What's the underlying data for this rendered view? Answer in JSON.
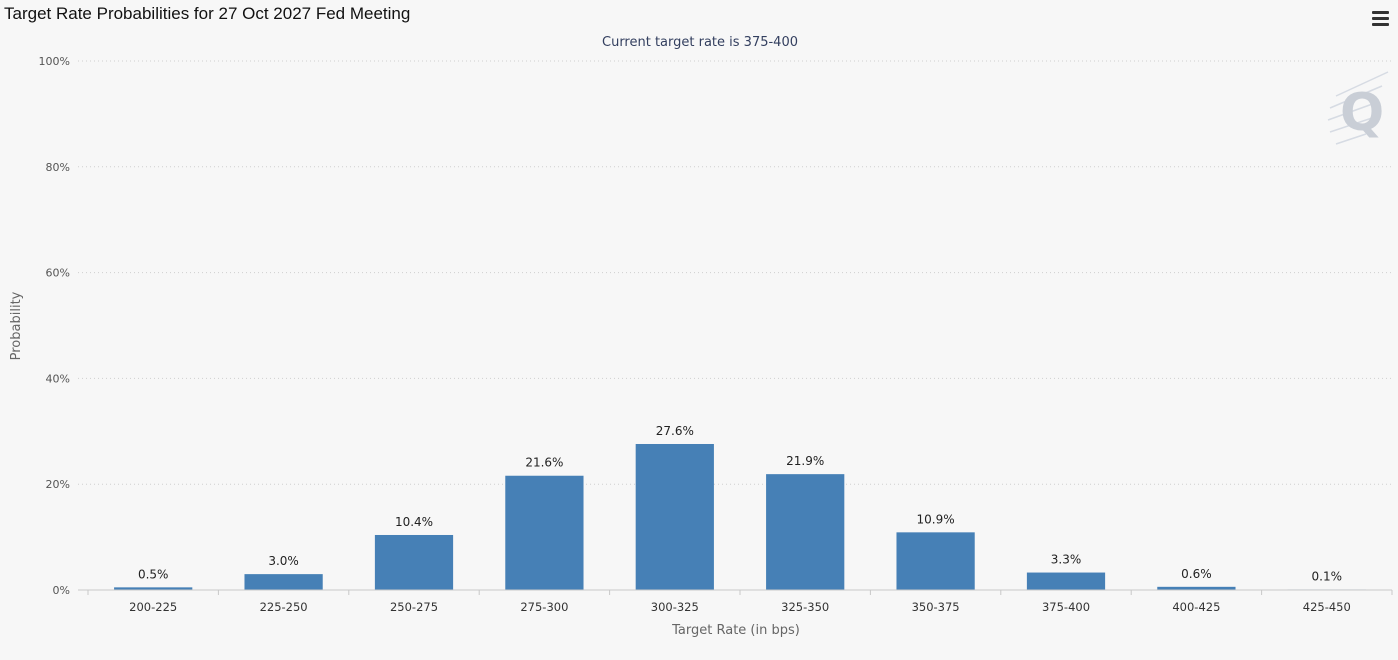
{
  "header": {
    "title": "Target Rate Probabilities for 27 Oct 2027 Fed Meeting",
    "menu_icon": "hamburger-menu-icon"
  },
  "watermark": {
    "text": "Q"
  },
  "chart_data": {
    "type": "bar",
    "subtitle": "Current target rate is 375-400",
    "xlabel": "Target Rate (in bps)",
    "ylabel": "Probability",
    "categories": [
      "200-225",
      "225-250",
      "250-275",
      "275-300",
      "300-325",
      "325-350",
      "350-375",
      "375-400",
      "400-425",
      "425-450"
    ],
    "values": [
      0.5,
      3.0,
      10.4,
      21.6,
      27.6,
      21.9,
      10.9,
      3.3,
      0.6,
      0.1
    ],
    "data_labels": [
      "0.5%",
      "3.0%",
      "10.4%",
      "21.6%",
      "27.6%",
      "21.9%",
      "10.9%",
      "3.3%",
      "0.6%",
      "0.1%"
    ],
    "ylim": [
      0,
      100
    ],
    "yticks": [
      0,
      20,
      40,
      60,
      80,
      100
    ],
    "ytick_labels": [
      "0%",
      "20%",
      "40%",
      "60%",
      "80%",
      "100%"
    ],
    "grid": true,
    "bar_color": "#4680b6"
  }
}
